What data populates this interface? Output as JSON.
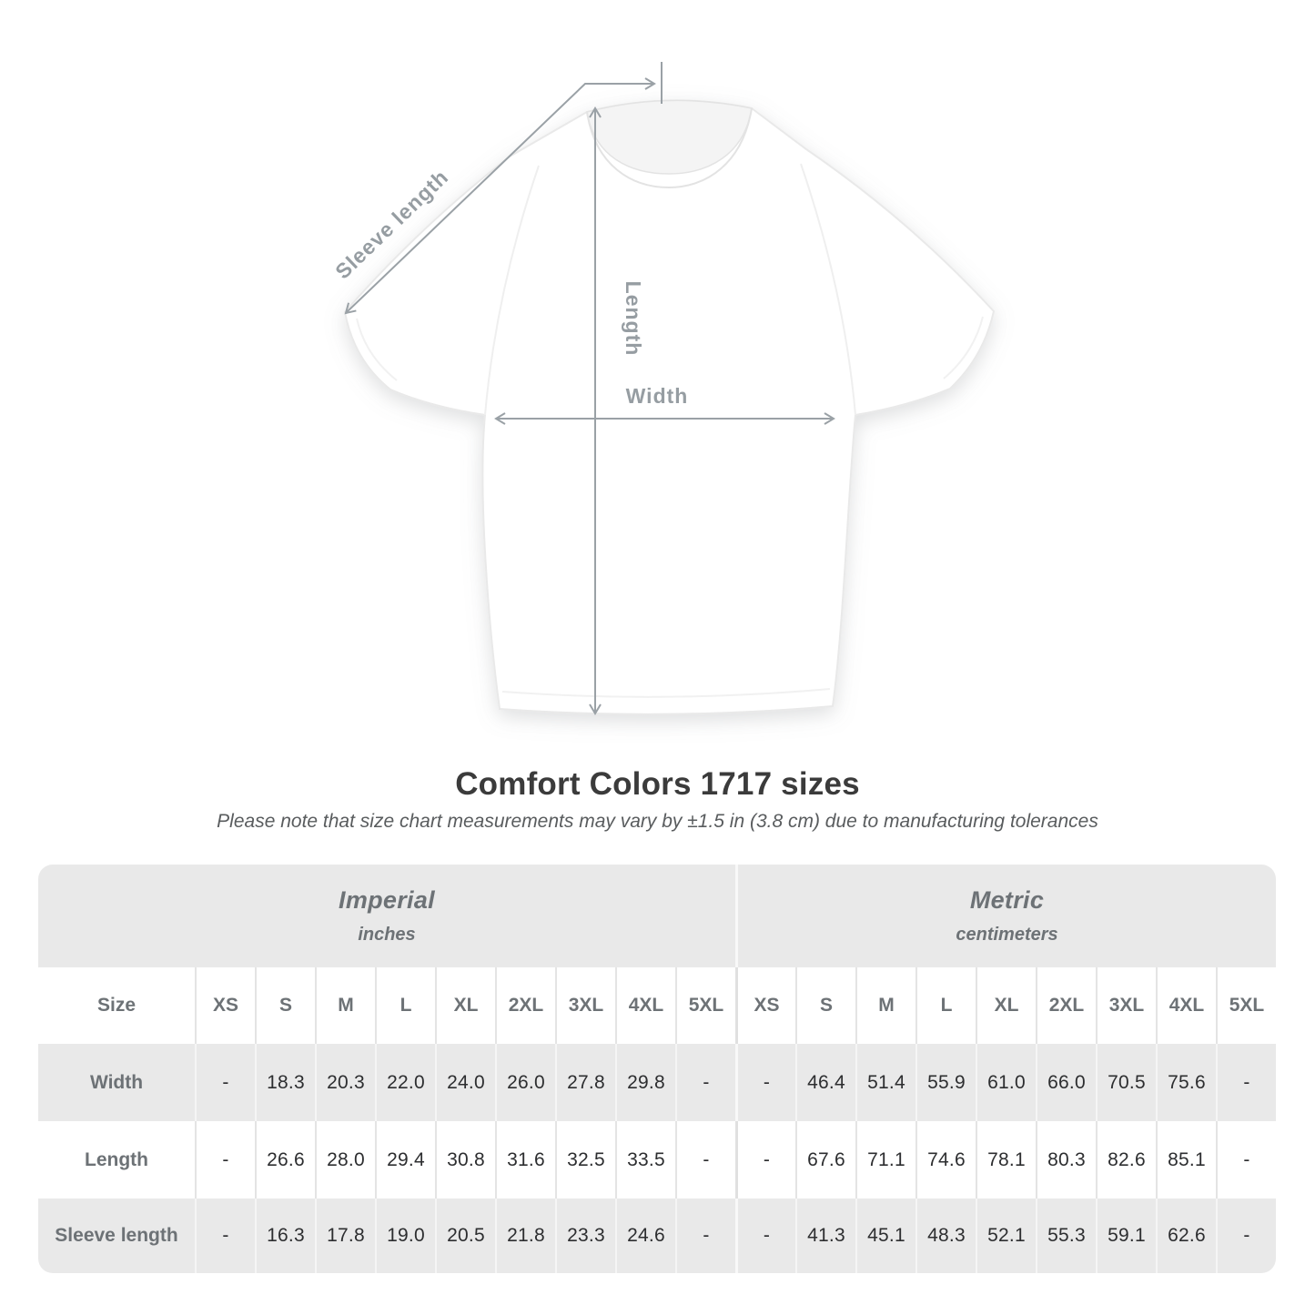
{
  "diagram": {
    "sleeve_label": "Sleeve length",
    "length_label": "Length",
    "width_label": "Width",
    "line_color": "#9aa1a6",
    "label_color": "#969da2"
  },
  "title": "Comfort Colors 1717 sizes",
  "subtitle": "Please note that size chart measurements may vary by ±1.5 in (3.8 cm) due to manufacturing tolerances",
  "size_table": {
    "sections": [
      {
        "name": "Imperial",
        "unit": "inches"
      },
      {
        "name": "Metric",
        "unit": "centimeters"
      }
    ],
    "size_header": "Size",
    "columns": [
      "XS",
      "S",
      "M",
      "L",
      "XL",
      "2XL",
      "3XL",
      "4XL",
      "5XL"
    ],
    "rows": [
      {
        "label": "Width",
        "imperial": [
          "-",
          "18.3",
          "20.3",
          "22.0",
          "24.0",
          "26.0",
          "27.8",
          "29.8",
          "-"
        ],
        "metric": [
          "-",
          "46.4",
          "51.4",
          "55.9",
          "61.0",
          "66.0",
          "70.5",
          "75.6",
          "-"
        ]
      },
      {
        "label": "Length",
        "imperial": [
          "-",
          "26.6",
          "28.0",
          "29.4",
          "30.8",
          "31.6",
          "32.5",
          "33.5",
          "-"
        ],
        "metric": [
          "-",
          "67.6",
          "71.1",
          "74.6",
          "78.1",
          "80.3",
          "82.6",
          "85.1",
          "-"
        ]
      },
      {
        "label": "Sleeve length",
        "imperial": [
          "-",
          "16.3",
          "17.8",
          "19.0",
          "20.5",
          "21.8",
          "23.3",
          "24.6",
          "-"
        ],
        "metric": [
          "-",
          "41.3",
          "45.1",
          "48.3",
          "52.1",
          "55.3",
          "59.1",
          "62.6",
          "-"
        ]
      }
    ],
    "colors": {
      "band_bg": "#e9e9e9",
      "alt_row_bg": "#e9e9e9",
      "header_text": "#6d7276",
      "value_text": "#2d2e30"
    }
  }
}
